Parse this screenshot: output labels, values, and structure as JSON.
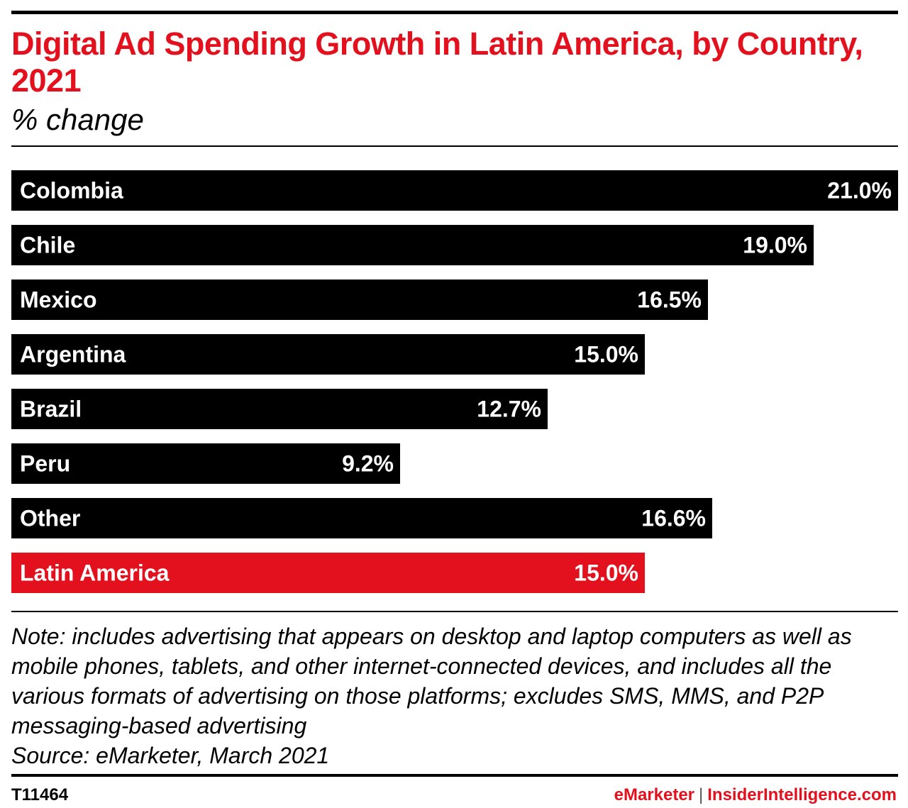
{
  "header": {
    "title": "Digital Ad Spending Growth in Latin America, by Country, 2021",
    "subtitle": "% change"
  },
  "chart_data": {
    "type": "bar",
    "orientation": "horizontal",
    "title": "Digital Ad Spending Growth in Latin America, by Country, 2021",
    "subtitle": "% change",
    "categories": [
      "Colombia",
      "Chile",
      "Mexico",
      "Argentina",
      "Brazil",
      "Peru",
      "Other",
      "Latin America"
    ],
    "values": [
      21.0,
      19.0,
      16.5,
      15.0,
      12.7,
      9.2,
      16.6,
      15.0
    ],
    "value_labels": [
      "21.0%",
      "19.0%",
      "16.5%",
      "15.0%",
      "12.7%",
      "9.2%",
      "16.6%",
      "15.0%"
    ],
    "xlim": [
      0,
      21.0
    ],
    "grid": false,
    "colors": {
      "bar": "#000000",
      "highlight": "#e3101d",
      "label_text": "#ffffff"
    },
    "highlight_category": "Latin America"
  },
  "footer": {
    "note": "Note: includes advertising that appears on desktop and laptop computers as well as mobile phones, tablets, and other internet-connected devices, and includes all the various formats of advertising on those platforms; excludes SMS, MMS, and P2P messaging-based advertising",
    "source": "Source: eMarketer, March 2021",
    "chart_id": "T11464",
    "brand_left": "eMarketer",
    "brand_separator": "|",
    "brand_right": "InsiderIntelligence.com"
  }
}
